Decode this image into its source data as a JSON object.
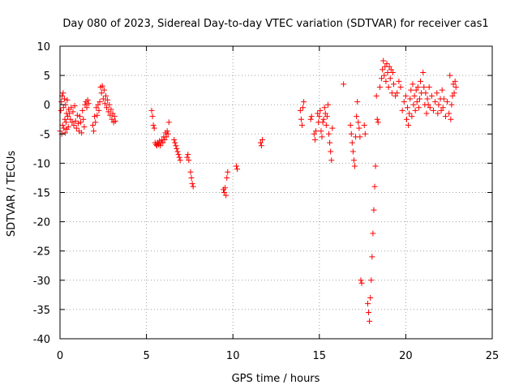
{
  "chart_data": {
    "type": "scatter",
    "title": "Day 080 of 2023, Sidereal Day-to-day VTEC variation (SDTVAR) for receiver cas1",
    "xlabel": "GPS time / hours",
    "ylabel": "SDTVAR / TECUs",
    "xlim": [
      0,
      25
    ],
    "ylim": [
      -40,
      10
    ],
    "xticks": [
      "0",
      "5",
      "10",
      "15",
      "20",
      "25"
    ],
    "yticks": [
      "10",
      "5",
      "0",
      "-5",
      "-10",
      "-15",
      "-20",
      "-25",
      "-30",
      "-35",
      "-40"
    ],
    "grid": true,
    "marker": "+",
    "color": "#ff0000",
    "series": [
      {
        "name": "SDTVAR",
        "points": [
          [
            0.0,
            -4.5
          ],
          [
            0.05,
            -1.0
          ],
          [
            0.08,
            0.5
          ],
          [
            0.1,
            -5.0
          ],
          [
            0.12,
            1.5
          ],
          [
            0.15,
            -3.5
          ],
          [
            0.18,
            2.0
          ],
          [
            0.2,
            -0.5
          ],
          [
            0.22,
            -4.0
          ],
          [
            0.25,
            1.0
          ],
          [
            0.28,
            -2.5
          ],
          [
            0.3,
            -4.8
          ],
          [
            0.32,
            0.0
          ],
          [
            0.35,
            -3.0
          ],
          [
            0.38,
            -1.5
          ],
          [
            0.4,
            -4.2
          ],
          [
            0.42,
            0.8
          ],
          [
            0.45,
            -2.0
          ],
          [
            0.48,
            -3.8
          ],
          [
            0.5,
            -0.8
          ],
          [
            0.55,
            -1.5
          ],
          [
            0.6,
            -2.5
          ],
          [
            0.65,
            -0.5
          ],
          [
            0.7,
            -3.0
          ],
          [
            0.75,
            -1.2
          ],
          [
            0.8,
            -3.5
          ],
          [
            0.85,
            -0.2
          ],
          [
            0.9,
            -2.8
          ],
          [
            0.95,
            -4.0
          ],
          [
            1.0,
            -1.8
          ],
          [
            1.05,
            -3.2
          ],
          [
            1.1,
            -4.5
          ],
          [
            1.15,
            -2.0
          ],
          [
            1.2,
            -3.0
          ],
          [
            1.25,
            -4.8
          ],
          [
            1.3,
            -1.0
          ],
          [
            1.35,
            -2.5
          ],
          [
            1.4,
            -3.8
          ],
          [
            1.45,
            0.0
          ],
          [
            1.5,
            0.5
          ],
          [
            1.55,
            -0.5
          ],
          [
            1.6,
            0.8
          ],
          [
            1.65,
            0.2
          ],
          [
            1.9,
            -3.5
          ],
          [
            1.95,
            -4.5
          ],
          [
            2.0,
            -2.0
          ],
          [
            2.05,
            -3.0
          ],
          [
            2.1,
            -0.5
          ],
          [
            2.15,
            -1.8
          ],
          [
            2.2,
            0.0
          ],
          [
            2.25,
            -1.0
          ],
          [
            2.3,
            0.5
          ],
          [
            2.35,
            3.0
          ],
          [
            2.4,
            2.0
          ],
          [
            2.45,
            3.2
          ],
          [
            2.5,
            1.0
          ],
          [
            2.55,
            2.5
          ],
          [
            2.6,
            0.2
          ],
          [
            2.65,
            1.5
          ],
          [
            2.7,
            -0.5
          ],
          [
            2.75,
            0.8
          ],
          [
            2.8,
            -1.2
          ],
          [
            2.85,
            0.0
          ],
          [
            2.9,
            -1.8
          ],
          [
            2.95,
            -0.8
          ],
          [
            3.0,
            -2.5
          ],
          [
            3.05,
            -1.5
          ],
          [
            3.1,
            -3.0
          ],
          [
            3.15,
            -2.0
          ],
          [
            3.2,
            -2.8
          ],
          [
            5.3,
            -1.0
          ],
          [
            5.35,
            -2.0
          ],
          [
            5.4,
            -3.5
          ],
          [
            5.45,
            -4.0
          ],
          [
            5.5,
            -6.5
          ],
          [
            5.55,
            -6.8
          ],
          [
            5.6,
            -7.0
          ],
          [
            5.65,
            -6.5
          ],
          [
            5.7,
            -6.8
          ],
          [
            5.75,
            -6.2
          ],
          [
            5.8,
            -7.0
          ],
          [
            5.85,
            -6.5
          ],
          [
            5.9,
            -6.0
          ],
          [
            5.95,
            -6.5
          ],
          [
            6.0,
            -5.5
          ],
          [
            6.05,
            -6.0
          ],
          [
            6.1,
            -4.8
          ],
          [
            6.15,
            -5.5
          ],
          [
            6.2,
            -4.5
          ],
          [
            6.25,
            -5.0
          ],
          [
            6.3,
            -3.0
          ],
          [
            6.6,
            -6.0
          ],
          [
            6.65,
            -6.5
          ],
          [
            6.7,
            -7.0
          ],
          [
            6.75,
            -7.5
          ],
          [
            6.8,
            -8.0
          ],
          [
            6.85,
            -8.5
          ],
          [
            6.9,
            -9.0
          ],
          [
            6.95,
            -9.5
          ],
          [
            7.35,
            -9.0
          ],
          [
            7.4,
            -8.5
          ],
          [
            7.45,
            -9.5
          ],
          [
            7.55,
            -11.5
          ],
          [
            7.6,
            -12.5
          ],
          [
            7.65,
            -13.5
          ],
          [
            7.7,
            -14.0
          ],
          [
            9.45,
            -14.5
          ],
          [
            9.5,
            -15.0
          ],
          [
            9.55,
            -14.2
          ],
          [
            9.6,
            -15.5
          ],
          [
            9.65,
            -12.5
          ],
          [
            9.7,
            -11.5
          ],
          [
            10.2,
            -10.5
          ],
          [
            10.25,
            -11.0
          ],
          [
            11.6,
            -6.5
          ],
          [
            11.65,
            -7.0
          ],
          [
            11.7,
            -6.0
          ],
          [
            13.9,
            -1.0
          ],
          [
            13.95,
            -2.5
          ],
          [
            14.0,
            -3.5
          ],
          [
            14.05,
            -0.5
          ],
          [
            14.1,
            0.5
          ],
          [
            14.5,
            -2.5
          ],
          [
            14.55,
            -2.0
          ],
          [
            14.7,
            -5.0
          ],
          [
            14.75,
            -6.0
          ],
          [
            14.8,
            -4.5
          ],
          [
            14.9,
            -1.5
          ],
          [
            14.95,
            -3.0
          ],
          [
            15.0,
            -2.0
          ],
          [
            15.05,
            -1.0
          ],
          [
            15.1,
            -4.5
          ],
          [
            15.15,
            -5.5
          ],
          [
            15.2,
            -3.0
          ],
          [
            15.25,
            -2.5
          ],
          [
            15.3,
            -0.5
          ],
          [
            15.35,
            -1.5
          ],
          [
            15.4,
            -3.5
          ],
          [
            15.45,
            -2.0
          ],
          [
            15.5,
            0.0
          ],
          [
            15.55,
            -5.0
          ],
          [
            15.6,
            -6.5
          ],
          [
            15.65,
            -8.0
          ],
          [
            15.7,
            -9.5
          ],
          [
            15.75,
            -4.0
          ],
          [
            16.4,
            3.5
          ],
          [
            16.8,
            -3.5
          ],
          [
            16.85,
            -5.0
          ],
          [
            16.9,
            -6.5
          ],
          [
            16.95,
            -8.0
          ],
          [
            17.0,
            -9.5
          ],
          [
            17.05,
            -10.5
          ],
          [
            17.1,
            -5.5
          ],
          [
            17.15,
            -2.0
          ],
          [
            17.2,
            0.5
          ],
          [
            17.25,
            -3.0
          ],
          [
            17.3,
            -4.0
          ],
          [
            17.35,
            -5.5
          ],
          [
            17.4,
            -30.0
          ],
          [
            17.45,
            -30.5
          ],
          [
            17.6,
            -3.5
          ],
          [
            17.65,
            -5.0
          ],
          [
            17.8,
            -34.0
          ],
          [
            17.85,
            -35.5
          ],
          [
            17.9,
            -37.0
          ],
          [
            17.95,
            -33.0
          ],
          [
            18.0,
            -30.0
          ],
          [
            18.05,
            -26.0
          ],
          [
            18.1,
            -22.0
          ],
          [
            18.15,
            -18.0
          ],
          [
            18.2,
            -14.0
          ],
          [
            18.25,
            -10.5
          ],
          [
            18.3,
            1.5
          ],
          [
            18.35,
            -2.5
          ],
          [
            18.4,
            -3.0
          ],
          [
            18.5,
            3.0
          ],
          [
            18.6,
            4.5
          ],
          [
            18.65,
            6.0
          ],
          [
            18.7,
            7.5
          ],
          [
            18.75,
            5.0
          ],
          [
            18.8,
            6.5
          ],
          [
            18.85,
            4.0
          ],
          [
            18.9,
            7.0
          ],
          [
            18.95,
            5.5
          ],
          [
            19.0,
            3.0
          ],
          [
            19.05,
            6.5
          ],
          [
            19.1,
            4.5
          ],
          [
            19.15,
            6.0
          ],
          [
            19.2,
            2.0
          ],
          [
            19.25,
            5.5
          ],
          [
            19.3,
            3.5
          ],
          [
            19.4,
            1.5
          ],
          [
            19.5,
            2.0
          ],
          [
            19.6,
            4.0
          ],
          [
            19.7,
            3.0
          ],
          [
            19.8,
            -1.0
          ],
          [
            19.9,
            0.5
          ],
          [
            20.0,
            1.5
          ],
          [
            20.05,
            -2.5
          ],
          [
            20.1,
            -0.5
          ],
          [
            20.15,
            -3.5
          ],
          [
            20.2,
            -1.5
          ],
          [
            20.25,
            1.0
          ],
          [
            20.3,
            2.5
          ],
          [
            20.35,
            -2.0
          ],
          [
            20.4,
            3.5
          ],
          [
            20.45,
            0.0
          ],
          [
            20.5,
            1.5
          ],
          [
            20.55,
            -1.0
          ],
          [
            20.6,
            2.5
          ],
          [
            20.65,
            0.5
          ],
          [
            20.7,
            3.0
          ],
          [
            20.75,
            -0.5
          ],
          [
            20.8,
            1.0
          ],
          [
            20.85,
            4.0
          ],
          [
            20.9,
            2.0
          ],
          [
            21.0,
            5.5
          ],
          [
            21.05,
            3.0
          ],
          [
            21.1,
            0.0
          ],
          [
            21.15,
            2.0
          ],
          [
            21.2,
            -1.5
          ],
          [
            21.25,
            1.0
          ],
          [
            21.3,
            0.0
          ],
          [
            21.35,
            3.0
          ],
          [
            21.4,
            -0.5
          ],
          [
            21.5,
            1.5
          ],
          [
            21.6,
            -1.0
          ],
          [
            21.7,
            0.5
          ],
          [
            21.8,
            2.0
          ],
          [
            21.85,
            -1.5
          ],
          [
            21.9,
            0.0
          ],
          [
            22.0,
            1.0
          ],
          [
            22.05,
            -1.0
          ],
          [
            22.1,
            2.5
          ],
          [
            22.15,
            -0.5
          ],
          [
            22.2,
            1.0
          ],
          [
            22.3,
            -2.0
          ],
          [
            22.4,
            0.5
          ],
          [
            22.5,
            -1.5
          ],
          [
            22.55,
            5.0
          ],
          [
            22.6,
            -2.5
          ],
          [
            22.65,
            0.0
          ],
          [
            22.7,
            1.5
          ],
          [
            22.75,
            3.5
          ],
          [
            22.8,
            2.0
          ],
          [
            22.85,
            4.0
          ],
          [
            22.9,
            3.0
          ]
        ]
      }
    ]
  }
}
